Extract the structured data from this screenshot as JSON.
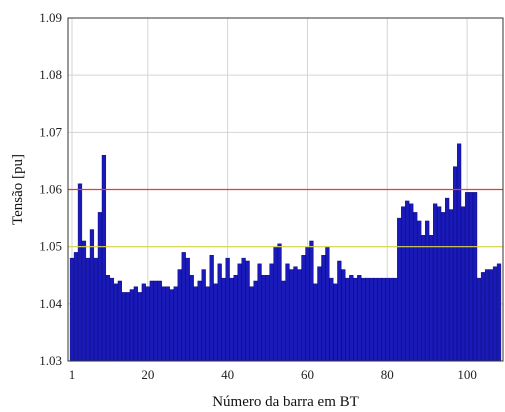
{
  "chart_data": {
    "type": "bar",
    "title": "",
    "xlabel": "Número da barra em BT",
    "ylabel": "Tensão [pu]",
    "xlim": [
      0,
      109
    ],
    "ylim": [
      1.03,
      1.09
    ],
    "xticks": [
      1,
      20,
      40,
      60,
      80,
      100
    ],
    "yticks": [
      1.03,
      1.04,
      1.05,
      1.06,
      1.07,
      1.08,
      1.09
    ],
    "grid": true,
    "bar_color": "#1a1ab8",
    "bar_edge_color": "#000066",
    "reference_lines": [
      {
        "value": 1.06,
        "color": "#e63b3b"
      },
      {
        "value": 1.05,
        "color": "#d8d84a"
      }
    ],
    "x": [
      1,
      2,
      3,
      4,
      5,
      6,
      7,
      8,
      9,
      10,
      11,
      12,
      13,
      14,
      15,
      16,
      17,
      18,
      19,
      20,
      21,
      22,
      23,
      24,
      25,
      26,
      27,
      28,
      29,
      30,
      31,
      32,
      33,
      34,
      35,
      36,
      37,
      38,
      39,
      40,
      41,
      42,
      43,
      44,
      45,
      46,
      47,
      48,
      49,
      50,
      51,
      52,
      53,
      54,
      55,
      56,
      57,
      58,
      59,
      60,
      61,
      62,
      63,
      64,
      65,
      66,
      67,
      68,
      69,
      70,
      71,
      72,
      73,
      74,
      75,
      76,
      77,
      78,
      79,
      80,
      81,
      82,
      83,
      84,
      85,
      86,
      87,
      88,
      89,
      90,
      91,
      92,
      93,
      94,
      95,
      96,
      97,
      98,
      99,
      100,
      101,
      102,
      103,
      104,
      105,
      106,
      107,
      108
    ],
    "values": [
      1.048,
      1.049,
      1.061,
      1.051,
      1.048,
      1.053,
      1.048,
      1.056,
      1.066,
      1.045,
      1.0445,
      1.0435,
      1.044,
      1.042,
      1.042,
      1.0425,
      1.043,
      1.042,
      1.0435,
      1.043,
      1.044,
      1.044,
      1.044,
      1.043,
      1.043,
      1.0425,
      1.043,
      1.046,
      1.049,
      1.048,
      1.045,
      1.043,
      1.044,
      1.046,
      1.043,
      1.0485,
      1.0435,
      1.047,
      1.0445,
      1.048,
      1.0445,
      1.045,
      1.047,
      1.048,
      1.0475,
      1.043,
      1.044,
      1.047,
      1.045,
      1.045,
      1.047,
      1.05,
      1.0505,
      1.044,
      1.047,
      1.046,
      1.0465,
      1.046,
      1.0485,
      1.05,
      1.051,
      1.0435,
      1.0465,
      1.0485,
      1.05,
      1.0445,
      1.0435,
      1.0475,
      1.046,
      1.0445,
      1.045,
      1.0445,
      1.045,
      1.0445,
      1.0445,
      1.0445,
      1.0445,
      1.0445,
      1.0445,
      1.0445,
      1.0445,
      1.0445,
      1.055,
      1.057,
      1.058,
      1.0575,
      1.056,
      1.0545,
      1.052,
      1.0545,
      1.052,
      1.0575,
      1.057,
      1.056,
      1.0585,
      1.0565,
      1.064,
      1.068,
      1.057,
      1.0595,
      1.0595,
      1.0595,
      1.0445,
      1.0455,
      1.046,
      1.046,
      1.0465,
      1.047
    ]
  }
}
